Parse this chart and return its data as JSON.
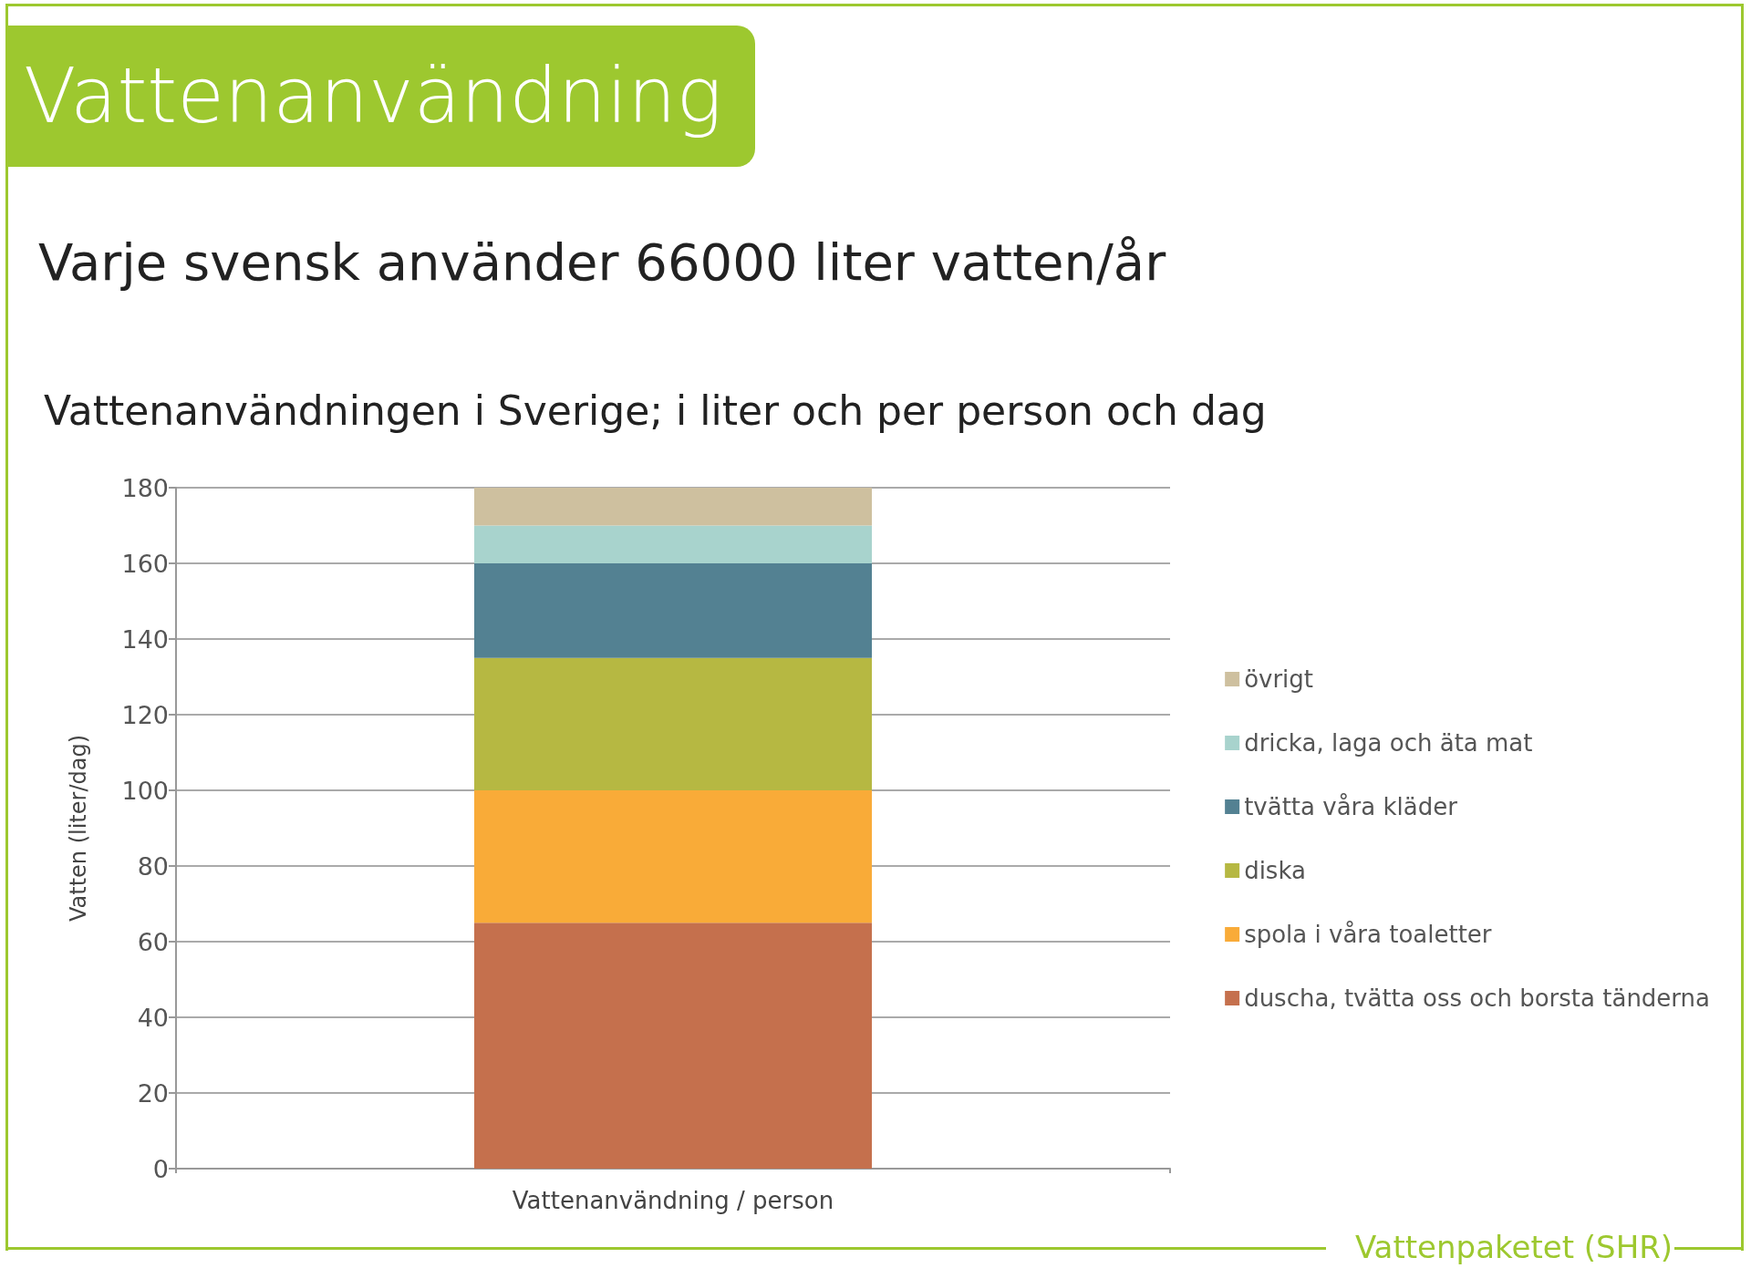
{
  "chart_data": {
    "type": "bar",
    "title": "Vattenanvändning",
    "subtitle": "Varje svensk använder 66000 liter vatten/år",
    "annotations": [
      "Vattenanvändningen i Sverige; i liter och per person och dag",
      "Vattenpaketet (SHR)"
    ],
    "categories": [
      "Vattenanvändning / person"
    ],
    "ylabel": "Vatten (liter/dag)",
    "stacked": true,
    "series": [
      {
        "name": "duscha, tvätta oss och borsta tänderna",
        "color": "#c5704d",
        "values": [
          65
        ]
      },
      {
        "name": "spola i våra toaletter",
        "color": "#f9ab38",
        "values": [
          35
        ]
      },
      {
        "name": "diska",
        "color": "#b6b842",
        "values": [
          35
        ]
      },
      {
        "name": "tvätta våra kläder",
        "color": "#538192",
        "values": [
          25
        ]
      },
      {
        "name": "dricka, laga och äta mat",
        "color": "#a8d3cd",
        "values": [
          10
        ]
      },
      {
        "name": "övrigt",
        "color": "#cec09f",
        "values": [
          10
        ]
      }
    ],
    "ylim": [
      0,
      180
    ],
    "yticks": [
      0,
      20,
      40,
      60,
      80,
      100,
      120,
      140,
      160,
      180
    ],
    "grid": "y",
    "legend": "right"
  }
}
